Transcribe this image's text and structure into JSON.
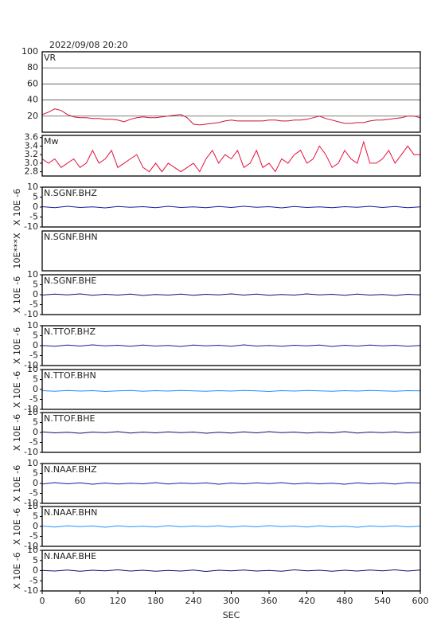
{
  "chart_data": [
    {
      "type": "line",
      "title": "2022/09/08 20:20",
      "label": "VR",
      "grid": true,
      "xlim": [
        0,
        600
      ],
      "ylim": [
        0,
        100
      ],
      "yticks": [
        20,
        40,
        60,
        80,
        100
      ],
      "x": [
        0,
        10,
        20,
        30,
        40,
        50,
        60,
        70,
        80,
        90,
        100,
        110,
        120,
        130,
        140,
        150,
        160,
        170,
        180,
        190,
        200,
        210,
        220,
        230,
        240,
        250,
        260,
        270,
        280,
        290,
        300,
        310,
        320,
        330,
        340,
        350,
        360,
        370,
        380,
        390,
        400,
        410,
        420,
        430,
        440,
        450,
        460,
        470,
        480,
        490,
        500,
        510,
        520,
        530,
        540,
        550,
        560,
        570,
        580,
        590,
        600
      ],
      "series": [
        {
          "color": "#d0103a",
          "values": [
            22,
            25,
            29,
            27,
            22,
            19,
            18,
            18,
            17,
            17,
            16,
            16,
            15,
            13,
            16,
            18,
            19,
            18,
            18,
            19,
            20,
            21,
            22,
            18,
            10,
            9,
            10,
            11,
            12,
            14,
            15,
            14,
            14,
            14,
            14,
            14,
            15,
            15,
            14,
            14,
            15,
            15,
            16,
            18,
            20,
            17,
            15,
            13,
            11,
            11,
            12,
            12,
            14,
            15,
            15,
            16,
            17,
            18,
            20,
            20,
            18
          ]
        }
      ]
    },
    {
      "type": "line",
      "label": "Mw",
      "xlim": [
        0,
        600
      ],
      "ylim": [
        2.7,
        3.65
      ],
      "yticks": [
        {
          "value": 2.8,
          "label": "2.8"
        },
        {
          "value": 3.0,
          "label": "3.0"
        },
        3.2,
        3.4,
        3.6
      ],
      "x": [
        0,
        10,
        20,
        30,
        40,
        50,
        60,
        70,
        80,
        90,
        100,
        110,
        120,
        130,
        140,
        150,
        160,
        170,
        180,
        190,
        200,
        210,
        220,
        230,
        240,
        250,
        260,
        270,
        280,
        290,
        300,
        310,
        320,
        330,
        340,
        350,
        360,
        370,
        380,
        390,
        400,
        410,
        420,
        430,
        440,
        450,
        460,
        470,
        480,
        490,
        500,
        510,
        520,
        530,
        540,
        550,
        560,
        570,
        580,
        590,
        600
      ],
      "series": [
        {
          "color": "#e8103c",
          "values": [
            3.1,
            3.0,
            3.1,
            2.9,
            3.0,
            3.1,
            2.9,
            3.0,
            3.3,
            3.0,
            3.1,
            3.3,
            2.9,
            3.0,
            3.1,
            3.2,
            2.9,
            2.8,
            3.0,
            2.8,
            3.0,
            2.9,
            2.8,
            2.9,
            3.0,
            2.8,
            3.1,
            3.3,
            3.0,
            3.2,
            3.1,
            3.3,
            2.9,
            3.0,
            3.3,
            2.9,
            3.0,
            2.8,
            3.1,
            3.0,
            3.2,
            3.3,
            3.0,
            3.1,
            3.4,
            3.2,
            2.9,
            3.0,
            3.3,
            3.1,
            3.0,
            3.5,
            3.0,
            3.0,
            3.1,
            3.3,
            3.0,
            3.2,
            3.4,
            3.2,
            3.2
          ]
        }
      ]
    },
    {
      "type": "line",
      "label": "N.SGNF.BHZ",
      "ylabel": "X 10E -6",
      "xlim": [
        0,
        600
      ],
      "ylim": [
        -10,
        10
      ],
      "yticks": [
        -10,
        -5,
        0,
        5,
        10
      ],
      "x": [
        0,
        20,
        40,
        60,
        80,
        100,
        120,
        140,
        160,
        180,
        200,
        220,
        240,
        260,
        280,
        300,
        320,
        340,
        360,
        380,
        400,
        420,
        440,
        460,
        480,
        500,
        520,
        540,
        560,
        580,
        600
      ],
      "series": [
        {
          "color": "#1a1aa0",
          "values": [
            0.2,
            -0.3,
            0.4,
            -0.2,
            0.1,
            -0.4,
            0.3,
            -0.1,
            0.2,
            -0.3,
            0.4,
            -0.2,
            0.1,
            -0.3,
            0.3,
            -0.2,
            0.4,
            -0.1,
            0.2,
            -0.4,
            0.3,
            -0.2,
            0.1,
            -0.3,
            0.2,
            -0.1,
            0.4,
            -0.2,
            0.3,
            -0.3,
            0.1
          ]
        }
      ]
    },
    {
      "type": "line",
      "label": "N.SGNF.BHN",
      "ylabel": "10E***X"
    },
    {
      "type": "line",
      "label": "N.SGNF.BHE",
      "ylabel": "X 10E -6",
      "xlim": [
        0,
        600
      ],
      "ylim": [
        -10,
        10
      ],
      "yticks": [
        -10,
        -5,
        0,
        5,
        10
      ],
      "x": [
        0,
        20,
        40,
        60,
        80,
        100,
        120,
        140,
        160,
        180,
        200,
        220,
        240,
        260,
        280,
        300,
        320,
        340,
        360,
        380,
        400,
        420,
        440,
        460,
        480,
        500,
        520,
        540,
        560,
        580,
        600
      ],
      "series": [
        {
          "color": "#101070",
          "values": [
            -0.2,
            0.3,
            -0.1,
            0.4,
            -0.3,
            0.2,
            -0.2,
            0.3,
            -0.4,
            0.1,
            -0.2,
            0.3,
            -0.3,
            0.2,
            -0.1,
            0.4,
            -0.2,
            0.3,
            -0.3,
            0.1,
            -0.2,
            0.4,
            -0.1,
            0.2,
            -0.3,
            0.3,
            -0.2,
            0.1,
            -0.4,
            0.2,
            -0.1
          ]
        }
      ]
    },
    {
      "type": "line",
      "label": "N.TTOF.BHZ",
      "ylabel": "X 10E -6",
      "xlim": [
        0,
        600
      ],
      "ylim": [
        -10,
        10
      ],
      "yticks": [
        -10,
        -5,
        0,
        5,
        10
      ],
      "x": [
        0,
        20,
        40,
        60,
        80,
        100,
        120,
        140,
        160,
        180,
        200,
        220,
        240,
        260,
        280,
        300,
        320,
        340,
        360,
        380,
        400,
        420,
        440,
        460,
        480,
        500,
        520,
        540,
        560,
        580,
        600
      ],
      "series": [
        {
          "color": "#1a1aa0",
          "values": [
            0.1,
            -0.3,
            0.3,
            -0.2,
            0.4,
            -0.1,
            0.2,
            -0.3,
            0.3,
            -0.2,
            0.1,
            -0.4,
            0.3,
            -0.1,
            0.2,
            -0.3,
            0.4,
            -0.2,
            0.1,
            -0.3,
            0.2,
            -0.1,
            0.3,
            -0.4,
            0.2,
            -0.2,
            0.3,
            -0.1,
            0.2,
            -0.3,
            0.1
          ]
        }
      ]
    },
    {
      "type": "line",
      "label": "N.TTOF.BHN",
      "ylabel": "X 10E -6",
      "xlim": [
        0,
        600
      ],
      "ylim": [
        -10,
        10
      ],
      "yticks": [
        -10,
        -5,
        0,
        5,
        10
      ],
      "x": [
        0,
        20,
        40,
        60,
        80,
        100,
        120,
        140,
        160,
        180,
        200,
        220,
        240,
        260,
        280,
        300,
        320,
        340,
        360,
        380,
        400,
        420,
        440,
        460,
        480,
        500,
        520,
        540,
        560,
        580,
        600
      ],
      "series": [
        {
          "color": "#2090ff",
          "values": [
            -0.6,
            -0.9,
            -0.5,
            -0.8,
            -0.6,
            -1.0,
            -0.7,
            -0.5,
            -0.9,
            -0.6,
            -0.8,
            -0.5,
            -0.7,
            -0.9,
            -0.6,
            -0.8,
            -0.5,
            -0.7,
            -1.0,
            -0.6,
            -0.8,
            -0.5,
            -0.7,
            -0.9,
            -0.6,
            -0.8,
            -0.5,
            -0.7,
            -0.9,
            -0.6,
            -0.7
          ]
        }
      ]
    },
    {
      "type": "line",
      "label": "N.TTOF.BHE",
      "ylabel": "X 10E -6",
      "xlim": [
        0,
        600
      ],
      "ylim": [
        -10,
        10
      ],
      "yticks": [
        -10,
        -5,
        0,
        5,
        10
      ],
      "x": [
        0,
        20,
        40,
        60,
        80,
        100,
        120,
        140,
        160,
        180,
        200,
        220,
        240,
        260,
        280,
        300,
        320,
        340,
        360,
        380,
        400,
        420,
        440,
        460,
        480,
        500,
        520,
        540,
        560,
        580,
        600
      ],
      "series": [
        {
          "color": "#101070",
          "values": [
            0.3,
            -0.2,
            0.1,
            -0.4,
            0.2,
            -0.1,
            0.4,
            -0.3,
            0.2,
            -0.2,
            0.3,
            -0.1,
            0.2,
            -0.4,
            0.1,
            -0.3,
            0.3,
            -0.2,
            0.4,
            -0.1,
            0.2,
            -0.3,
            0.1,
            -0.2,
            0.4,
            -0.3,
            0.2,
            -0.1,
            0.3,
            -0.2,
            0.2
          ]
        }
      ]
    },
    {
      "type": "line",
      "label": "N.NAAF.BHZ",
      "ylabel": "X 10E -6",
      "xlim": [
        0,
        600
      ],
      "ylim": [
        -10,
        10
      ],
      "yticks": [
        -10,
        -5,
        0,
        5,
        10
      ],
      "x": [
        0,
        20,
        40,
        60,
        80,
        100,
        120,
        140,
        160,
        180,
        200,
        220,
        240,
        260,
        280,
        300,
        320,
        340,
        360,
        380,
        400,
        420,
        440,
        460,
        480,
        500,
        520,
        540,
        560,
        580,
        600
      ],
      "series": [
        {
          "color": "#1a1aa0",
          "values": [
            -0.3,
            0.4,
            -0.2,
            0.3,
            -0.4,
            0.2,
            -0.3,
            0.1,
            -0.2,
            0.4,
            -0.3,
            0.2,
            -0.1,
            0.3,
            -0.4,
            0.2,
            -0.2,
            0.3,
            -0.1,
            0.4,
            -0.3,
            0.2,
            -0.2,
            0.1,
            -0.4,
            0.3,
            -0.2,
            0.2,
            -0.3,
            0.4,
            0.2
          ]
        }
      ]
    },
    {
      "type": "line",
      "label": "N.NAAF.BHN",
      "ylabel": "X 10E -6",
      "xlim": [
        0,
        600
      ],
      "ylim": [
        -10,
        10
      ],
      "yticks": [
        -10,
        -5,
        0,
        5,
        10
      ],
      "x": [
        0,
        20,
        40,
        60,
        80,
        100,
        120,
        140,
        160,
        180,
        200,
        220,
        240,
        260,
        280,
        300,
        320,
        340,
        360,
        380,
        400,
        420,
        440,
        460,
        480,
        500,
        520,
        540,
        560,
        580,
        600
      ],
      "series": [
        {
          "color": "#2090ff",
          "values": [
            0.2,
            -0.3,
            0.3,
            -0.1,
            0.2,
            -0.4,
            0.3,
            -0.2,
            0.1,
            -0.3,
            0.4,
            -0.2,
            0.2,
            -0.1,
            0.3,
            -0.3,
            0.2,
            -0.2,
            0.4,
            -0.1,
            0.2,
            -0.3,
            0.3,
            -0.2,
            0.1,
            -0.4,
            0.2,
            -0.1,
            0.3,
            -0.2,
            0.1
          ]
        }
      ]
    },
    {
      "type": "line",
      "label": "N.NAAF.BHE",
      "ylabel": "X 10E -6",
      "xlabel": "SEC",
      "xlim": [
        0,
        600
      ],
      "ylim": [
        -10,
        10
      ],
      "yticks": [
        -10,
        -5,
        0,
        5,
        10
      ],
      "xticks": [
        0,
        60,
        120,
        180,
        240,
        300,
        360,
        420,
        480,
        540,
        600
      ],
      "x": [
        0,
        20,
        40,
        60,
        80,
        100,
        120,
        140,
        160,
        180,
        200,
        220,
        240,
        260,
        280,
        300,
        320,
        340,
        360,
        380,
        400,
        420,
        440,
        460,
        480,
        500,
        520,
        540,
        560,
        580,
        600
      ],
      "series": [
        {
          "color": "#101070",
          "values": [
            0.1,
            -0.2,
            0.3,
            -0.3,
            0.2,
            -0.1,
            0.4,
            -0.2,
            0.2,
            -0.3,
            0.1,
            -0.2,
            0.3,
            -0.4,
            0.2,
            -0.1,
            0.3,
            -0.2,
            0.1,
            -0.3,
            0.4,
            -0.1,
            0.2,
            -0.3,
            0.2,
            -0.2,
            0.3,
            -0.1,
            0.4,
            -0.2,
            0.3
          ]
        }
      ]
    }
  ]
}
